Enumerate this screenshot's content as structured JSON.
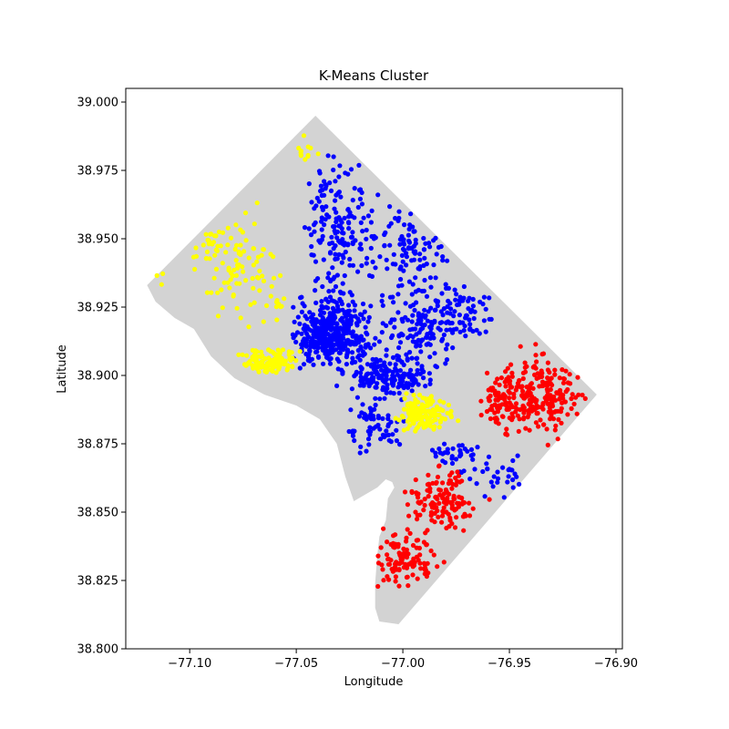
{
  "chart_data": {
    "type": "scatter",
    "title": "K-Means Cluster",
    "xlabel": "Longitude",
    "ylabel": "Latitude",
    "xlim": [
      -77.13,
      -76.897
    ],
    "ylim": [
      38.8,
      39.005
    ],
    "xticks": [
      -77.1,
      -77.05,
      -77.0,
      -76.95,
      -76.9
    ],
    "xtick_labels": [
      "−77.10",
      "−77.05",
      "−77.00",
      "−76.95",
      "−76.90"
    ],
    "yticks": [
      38.8,
      38.825,
      38.85,
      38.875,
      38.9,
      38.925,
      38.95,
      38.975,
      39.0
    ],
    "ytick_labels": [
      "38.800",
      "38.825",
      "38.850",
      "38.875",
      "38.900",
      "38.925",
      "38.950",
      "38.975",
      "39.000"
    ],
    "grid": false,
    "background_shape": {
      "color": "#d3d3d3",
      "outline": [
        [
          -77.041,
          38.995
        ],
        [
          -76.909,
          38.893
        ],
        [
          -77.002,
          38.809
        ],
        [
          -77.011,
          38.81
        ],
        [
          -77.013,
          38.815
        ],
        [
          -77.013,
          38.824
        ],
        [
          -77.012,
          38.834
        ],
        [
          -77.011,
          38.841
        ],
        [
          -77.008,
          38.847
        ],
        [
          -77.007,
          38.855
        ],
        [
          -77.004,
          38.859
        ],
        [
          -77.005,
          38.861
        ],
        [
          -77.008,
          38.862
        ],
        [
          -77.012,
          38.859
        ],
        [
          -77.023,
          38.854
        ],
        [
          -77.027,
          38.863
        ],
        [
          -77.031,
          38.875
        ],
        [
          -77.039,
          38.884
        ],
        [
          -77.05,
          38.889
        ],
        [
          -77.065,
          38.893
        ],
        [
          -77.079,
          38.899
        ],
        [
          -77.09,
          38.907
        ],
        [
          -77.098,
          38.917
        ],
        [
          -77.107,
          38.921
        ],
        [
          -77.116,
          38.927
        ],
        [
          -77.12,
          38.933
        ],
        [
          -77.041,
          38.995
        ]
      ]
    },
    "series": [
      {
        "color": "#0000ff",
        "regions": [
          {
            "cx": -77.032,
            "cy": 38.915,
            "rx": 0.016,
            "ry": 0.01,
            "n": 420
          },
          {
            "cx": -77.031,
            "cy": 38.952,
            "rx": 0.013,
            "ry": 0.025,
            "n": 170
          },
          {
            "cx": -77.008,
            "cy": 38.9,
            "rx": 0.017,
            "ry": 0.006,
            "n": 180
          },
          {
            "cx": -76.992,
            "cy": 38.917,
            "rx": 0.018,
            "ry": 0.012,
            "n": 130
          },
          {
            "cx": -76.997,
            "cy": 38.944,
            "rx": 0.02,
            "ry": 0.016,
            "n": 110
          },
          {
            "cx": -76.972,
            "cy": 38.923,
            "rx": 0.014,
            "ry": 0.009,
            "n": 60
          },
          {
            "cx": -77.013,
            "cy": 38.881,
            "rx": 0.012,
            "ry": 0.007,
            "n": 60
          },
          {
            "cx": -76.977,
            "cy": 38.872,
            "rx": 0.009,
            "ry": 0.004,
            "n": 30
          },
          {
            "cx": -76.958,
            "cy": 38.864,
            "rx": 0.013,
            "ry": 0.007,
            "n": 35
          }
        ]
      },
      {
        "color": "#ffff00",
        "regions": [
          {
            "cx": -77.062,
            "cy": 38.905,
            "rx": 0.011,
            "ry": 0.004,
            "n": 120
          },
          {
            "cx": -76.99,
            "cy": 38.886,
            "rx": 0.011,
            "ry": 0.006,
            "n": 140
          },
          {
            "cx": -77.077,
            "cy": 38.94,
            "rx": 0.015,
            "ry": 0.016,
            "n": 90
          },
          {
            "cx": -77.092,
            "cy": 38.948,
            "rx": 0.009,
            "ry": 0.007,
            "n": 15
          },
          {
            "cx": -77.045,
            "cy": 38.983,
            "rx": 0.005,
            "ry": 0.004,
            "n": 12
          },
          {
            "cx": -77.06,
            "cy": 38.925,
            "rx": 0.006,
            "ry": 0.006,
            "n": 10
          },
          {
            "cx": -77.112,
            "cy": 38.935,
            "rx": 0.003,
            "ry": 0.003,
            "n": 3
          }
        ]
      },
      {
        "color": "#ff0000",
        "regions": [
          {
            "cx": -76.935,
            "cy": 38.893,
            "rx": 0.018,
            "ry": 0.013,
            "n": 230
          },
          {
            "cx": -76.954,
            "cy": 38.889,
            "rx": 0.008,
            "ry": 0.008,
            "n": 50
          },
          {
            "cx": -76.982,
            "cy": 38.855,
            "rx": 0.014,
            "ry": 0.009,
            "n": 130
          },
          {
            "cx": -77.0,
            "cy": 38.833,
            "rx": 0.013,
            "ry": 0.01,
            "n": 110
          }
        ]
      }
    ]
  }
}
